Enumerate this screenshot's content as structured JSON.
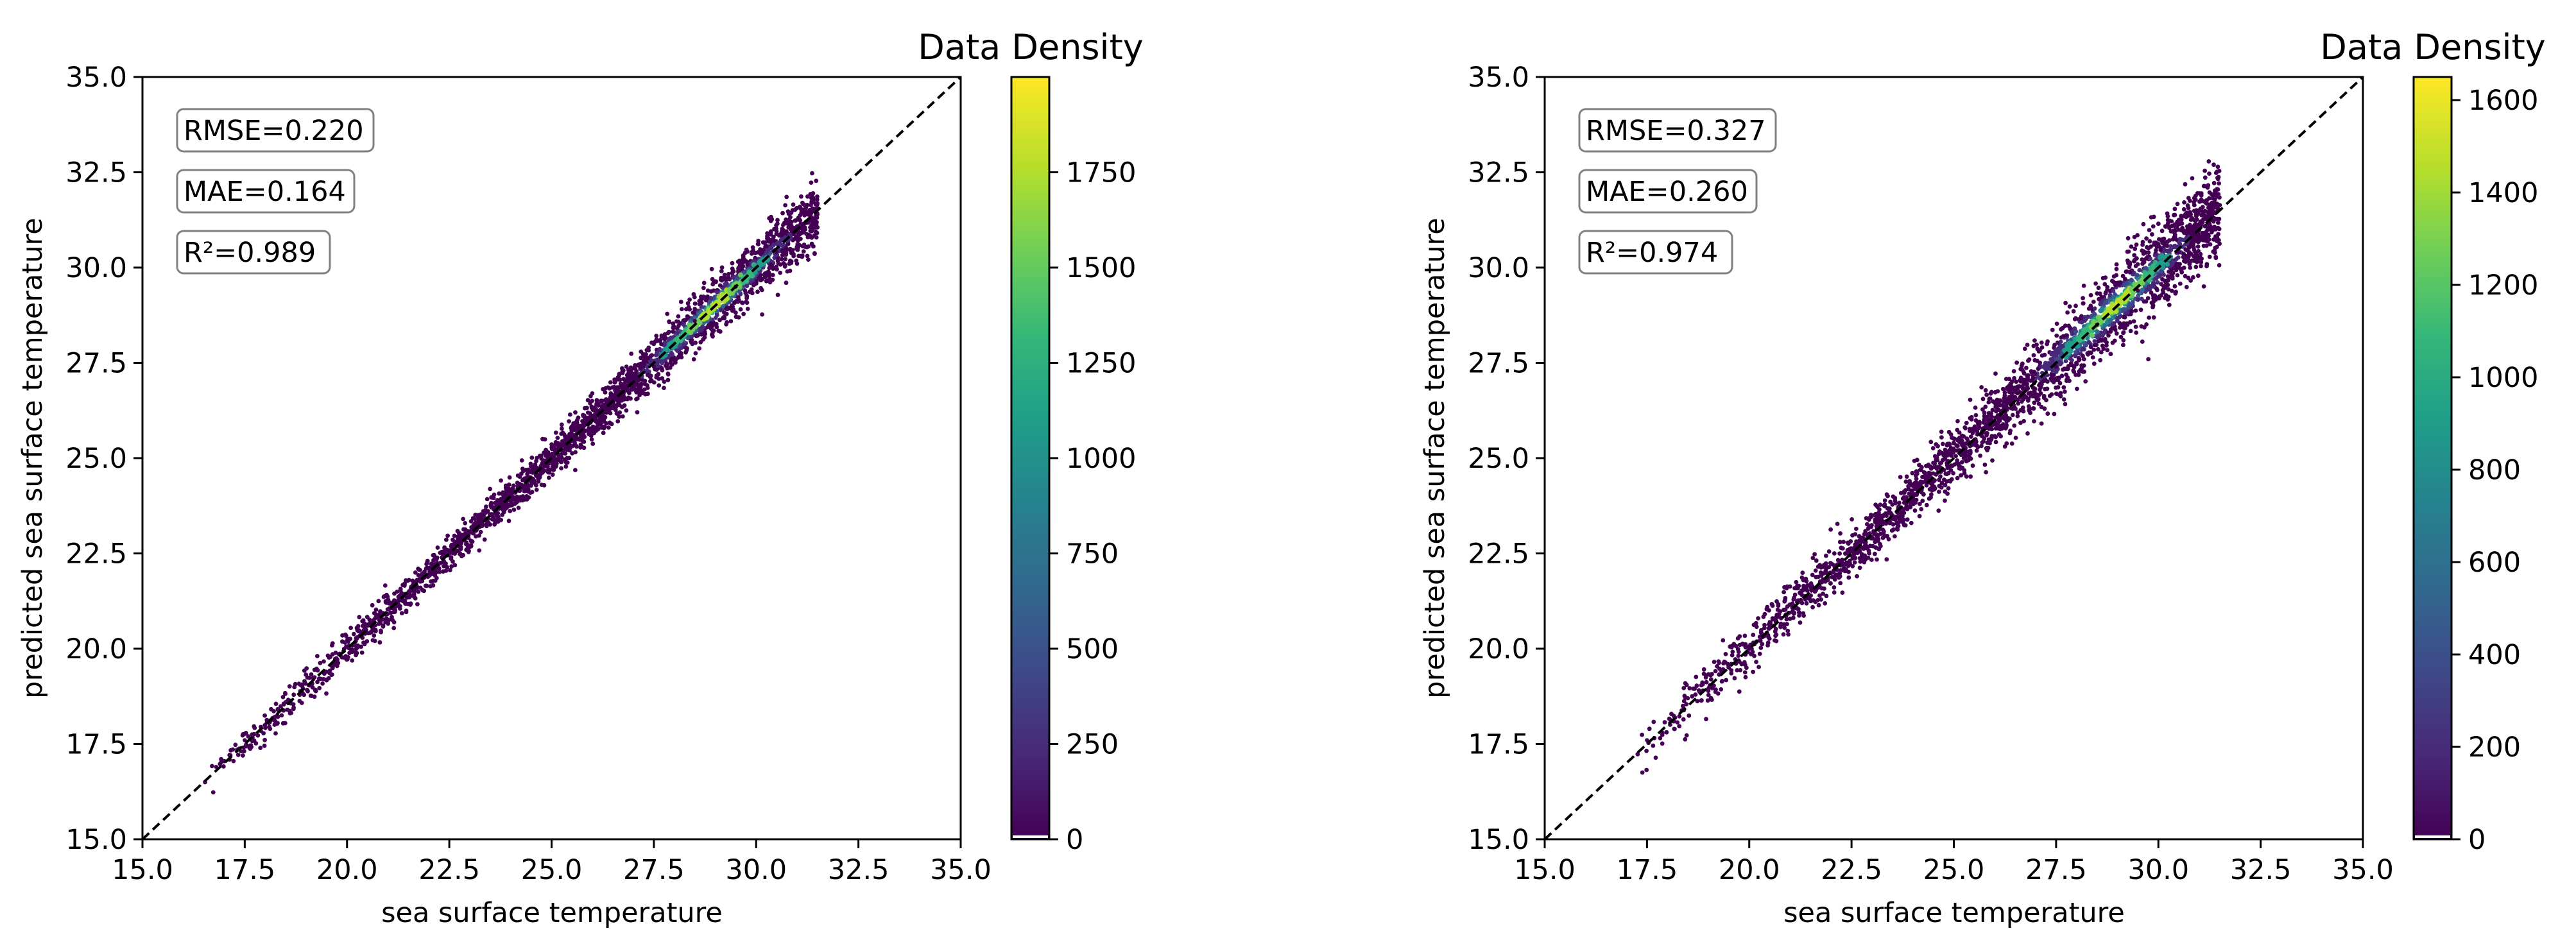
{
  "chart_data": [
    {
      "type": "scatter",
      "subtype": "density-scatter",
      "xlabel": "sea surface temperature",
      "ylabel": "predicted sea surface temperature",
      "xlim": [
        15.0,
        35.0
      ],
      "ylim": [
        15.0,
        35.0
      ],
      "xticks": [
        "15.0",
        "17.5",
        "20.0",
        "22.5",
        "25.0",
        "27.5",
        "30.0",
        "32.5",
        "35.0"
      ],
      "yticks": [
        "15.0",
        "17.5",
        "20.0",
        "22.5",
        "25.0",
        "27.5",
        "30.0",
        "32.5",
        "35.0"
      ],
      "reference_line": {
        "x": [
          15.0,
          35.0
        ],
        "y": [
          15.0,
          35.0
        ],
        "style": "dashed",
        "color": "#000000"
      },
      "metrics": [
        "RMSE=0.220",
        "MAE=0.164",
        "R²=0.989"
      ],
      "colorbar": {
        "title": "Data Density",
        "range": [
          0,
          2000
        ],
        "ticks": [
          "0",
          "250",
          "500",
          "750",
          "1000",
          "1250",
          "1500",
          "1750"
        ],
        "colormap": "viridis"
      },
      "cloud": {
        "x_range": [
          16.5,
          31.5
        ],
        "spread": 0.22,
        "bias": 0.0,
        "peak_x": 29.0,
        "peak_y": 29.0,
        "points": [
          {
            "x": 16.8,
            "y": 16.9
          },
          {
            "x": 17.5,
            "y": 17.6
          },
          {
            "x": 18.5,
            "y": 18.6
          },
          {
            "x": 19.5,
            "y": 19.4
          },
          {
            "x": 20.5,
            "y": 20.6
          },
          {
            "x": 21.5,
            "y": 21.4
          },
          {
            "x": 22.5,
            "y": 22.5
          },
          {
            "x": 23.5,
            "y": 23.5
          },
          {
            "x": 24.5,
            "y": 24.4
          },
          {
            "x": 25.5,
            "y": 25.6
          },
          {
            "x": 26.5,
            "y": 26.5
          },
          {
            "x": 27.5,
            "y": 27.4
          },
          {
            "x": 28.5,
            "y": 28.6
          },
          {
            "x": 29.5,
            "y": 29.5
          },
          {
            "x": 30.5,
            "y": 30.4
          },
          {
            "x": 31.2,
            "y": 31.0
          }
        ]
      }
    },
    {
      "type": "scatter",
      "subtype": "density-scatter",
      "xlabel": "sea surface temperature",
      "ylabel": "predicted sea surface temperature",
      "xlim": [
        15.0,
        35.0
      ],
      "ylim": [
        15.0,
        35.0
      ],
      "xticks": [
        "15.0",
        "17.5",
        "20.0",
        "22.5",
        "25.0",
        "27.5",
        "30.0",
        "32.5",
        "35.0"
      ],
      "yticks": [
        "15.0",
        "17.5",
        "20.0",
        "22.5",
        "25.0",
        "27.5",
        "30.0",
        "32.5",
        "35.0"
      ],
      "reference_line": {
        "x": [
          15.0,
          35.0
        ],
        "y": [
          15.0,
          35.0
        ],
        "style": "dashed",
        "color": "#000000"
      },
      "metrics": [
        "RMSE=0.327",
        "MAE=0.260",
        "R²=0.974"
      ],
      "colorbar": {
        "title": "Data Density",
        "range": [
          0,
          1650
        ],
        "ticks": [
          "0",
          "200",
          "400",
          "600",
          "800",
          "1000",
          "1200",
          "1400",
          "1600"
        ],
        "colormap": "viridis"
      },
      "cloud": {
        "x_range": [
          17.0,
          31.5
        ],
        "spread": 0.32,
        "bias": 0.05,
        "peak_x": 29.0,
        "peak_y": 28.8,
        "points": [
          {
            "x": 17.5,
            "y": 17.6
          },
          {
            "x": 18.5,
            "y": 18.7
          },
          {
            "x": 19.5,
            "y": 19.5
          },
          {
            "x": 20.5,
            "y": 20.7
          },
          {
            "x": 21.5,
            "y": 21.6
          },
          {
            "x": 22.5,
            "y": 22.6
          },
          {
            "x": 23.5,
            "y": 23.5
          },
          {
            "x": 24.5,
            "y": 24.6
          },
          {
            "x": 25.5,
            "y": 25.8
          },
          {
            "x": 26.5,
            "y": 26.6
          },
          {
            "x": 27.5,
            "y": 27.4
          },
          {
            "x": 28.5,
            "y": 28.5
          },
          {
            "x": 29.5,
            "y": 29.4
          },
          {
            "x": 30.5,
            "y": 30.4
          },
          {
            "x": 31.2,
            "y": 31.0
          }
        ]
      }
    }
  ]
}
